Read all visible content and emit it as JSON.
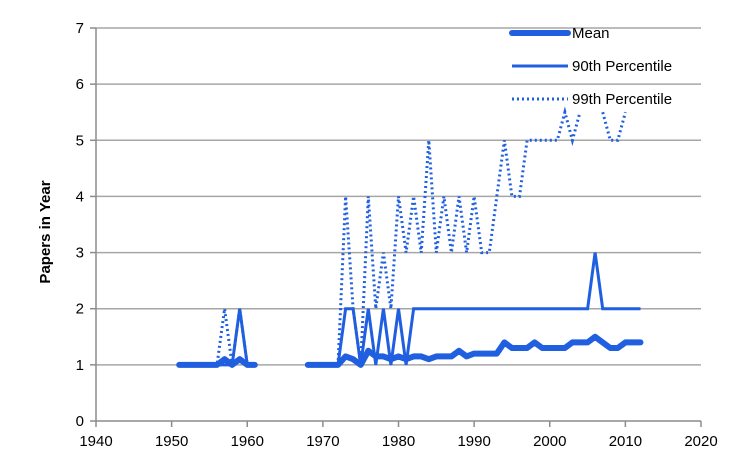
{
  "chart_data": {
    "type": "line",
    "title": "",
    "xlabel": "",
    "ylabel": "Papers in Year",
    "xlim": [
      1940,
      2020
    ],
    "ylim": [
      0,
      7
    ],
    "xticks": [
      1940,
      1950,
      1960,
      1970,
      1980,
      1990,
      2000,
      2010,
      2020
    ],
    "yticks": [
      0,
      1,
      2,
      3,
      4,
      5,
      6,
      7
    ],
    "grid": "horizontal",
    "legend": "top-right",
    "colors": {
      "series": "#1f5fe0",
      "grid": "#a6a6a6",
      "axis": "#8c8c8c"
    },
    "series": [
      {
        "name": "Mean",
        "style": "thick",
        "segments": [
          [
            [
              1951,
              1
            ],
            [
              1952,
              1
            ],
            [
              1953,
              1
            ],
            [
              1954,
              1
            ],
            [
              1955,
              1
            ],
            [
              1956,
              1
            ],
            [
              1957,
              1.1
            ],
            [
              1958,
              1
            ],
            [
              1959,
              1.1
            ],
            [
              1960,
              1
            ],
            [
              1961,
              1
            ]
          ],
          [
            [
              1968,
              1
            ],
            [
              1969,
              1
            ],
            [
              1970,
              1
            ],
            [
              1971,
              1
            ],
            [
              1972,
              1
            ],
            [
              1973,
              1.15
            ],
            [
              1974,
              1.1
            ],
            [
              1975,
              1
            ],
            [
              1976,
              1.25
            ],
            [
              1977,
              1.15
            ],
            [
              1978,
              1.15
            ],
            [
              1979,
              1.1
            ],
            [
              1980,
              1.15
            ],
            [
              1981,
              1.1
            ],
            [
              1982,
              1.15
            ],
            [
              1983,
              1.15
            ],
            [
              1984,
              1.1
            ],
            [
              1985,
              1.15
            ],
            [
              1986,
              1.15
            ],
            [
              1987,
              1.15
            ],
            [
              1988,
              1.25
            ],
            [
              1989,
              1.15
            ],
            [
              1990,
              1.2
            ],
            [
              1991,
              1.2
            ],
            [
              1992,
              1.2
            ],
            [
              1993,
              1.2
            ],
            [
              1994,
              1.4
            ],
            [
              1995,
              1.3
            ],
            [
              1996,
              1.3
            ],
            [
              1997,
              1.3
            ],
            [
              1998,
              1.4
            ],
            [
              1999,
              1.3
            ],
            [
              2000,
              1.3
            ],
            [
              2001,
              1.3
            ],
            [
              2002,
              1.3
            ],
            [
              2003,
              1.4
            ],
            [
              2004,
              1.4
            ],
            [
              2005,
              1.4
            ],
            [
              2006,
              1.5
            ],
            [
              2007,
              1.4
            ],
            [
              2008,
              1.3
            ],
            [
              2009,
              1.3
            ],
            [
              2010,
              1.4
            ],
            [
              2011,
              1.4
            ],
            [
              2012,
              1.4
            ]
          ]
        ]
      },
      {
        "name": "90th Percentile",
        "style": "solid",
        "segments": [
          [
            [
              1951,
              1
            ],
            [
              1952,
              1
            ],
            [
              1953,
              1
            ],
            [
              1954,
              1
            ],
            [
              1955,
              1
            ],
            [
              1956,
              1
            ],
            [
              1957,
              1
            ],
            [
              1958,
              1
            ],
            [
              1959,
              2
            ],
            [
              1960,
              1
            ],
            [
              1961,
              1
            ]
          ],
          [
            [
              1968,
              1
            ],
            [
              1969,
              1
            ],
            [
              1970,
              1
            ],
            [
              1971,
              1
            ],
            [
              1972,
              1
            ],
            [
              1973,
              2
            ],
            [
              1974,
              2
            ],
            [
              1975,
              1
            ],
            [
              1976,
              2
            ],
            [
              1977,
              1
            ],
            [
              1978,
              2
            ],
            [
              1979,
              1
            ],
            [
              1980,
              2
            ],
            [
              1981,
              1
            ],
            [
              1982,
              2
            ],
            [
              1983,
              2
            ],
            [
              1984,
              2
            ],
            [
              1985,
              2
            ],
            [
              1986,
              2
            ],
            [
              1987,
              2
            ],
            [
              1988,
              2
            ],
            [
              1989,
              2
            ],
            [
              1990,
              2
            ],
            [
              1991,
              2
            ],
            [
              1992,
              2
            ],
            [
              1993,
              2
            ],
            [
              1994,
              2
            ],
            [
              1995,
              2
            ],
            [
              1996,
              2
            ],
            [
              1997,
              2
            ],
            [
              1998,
              2
            ],
            [
              1999,
              2
            ],
            [
              2000,
              2
            ],
            [
              2001,
              2
            ],
            [
              2002,
              2
            ],
            [
              2003,
              2
            ],
            [
              2004,
              2
            ],
            [
              2005,
              2
            ],
            [
              2006,
              3
            ],
            [
              2007,
              2
            ],
            [
              2008,
              2
            ],
            [
              2009,
              2
            ],
            [
              2010,
              2
            ],
            [
              2011,
              2
            ],
            [
              2012,
              2
            ]
          ]
        ]
      },
      {
        "name": "99th Percentile",
        "style": "dotted",
        "segments": [
          [
            [
              1951,
              1
            ],
            [
              1952,
              1
            ],
            [
              1953,
              1
            ],
            [
              1954,
              1
            ],
            [
              1955,
              1
            ],
            [
              1956,
              1
            ],
            [
              1957,
              2
            ],
            [
              1958,
              1
            ],
            [
              1959,
              2
            ],
            [
              1960,
              1
            ],
            [
              1961,
              1
            ]
          ],
          [
            [
              1968,
              1
            ],
            [
              1969,
              1
            ],
            [
              1970,
              1
            ],
            [
              1971,
              1
            ],
            [
              1972,
              1
            ],
            [
              1973,
              4
            ],
            [
              1974,
              2
            ],
            [
              1975,
              1
            ],
            [
              1976,
              4
            ],
            [
              1977,
              2
            ],
            [
              1978,
              3
            ],
            [
              1979,
              2
            ],
            [
              1980,
              4
            ],
            [
              1981,
              3
            ],
            [
              1982,
              4
            ],
            [
              1983,
              3
            ],
            [
              1984,
              5
            ],
            [
              1985,
              3
            ],
            [
              1986,
              4
            ],
            [
              1987,
              3
            ],
            [
              1988,
              4
            ],
            [
              1989,
              3
            ],
            [
              1990,
              4
            ],
            [
              1991,
              3
            ],
            [
              1992,
              3
            ],
            [
              1993,
              4
            ],
            [
              1994,
              5
            ],
            [
              1995,
              4
            ],
            [
              1996,
              4
            ],
            [
              1997,
              5
            ],
            [
              1998,
              5
            ],
            [
              1999,
              5
            ],
            [
              2000,
              5
            ],
            [
              2001,
              5
            ],
            [
              2002,
              5.5
            ],
            [
              2003,
              5
            ],
            [
              2004,
              5.5
            ]
          ],
          [
            [
              2007,
              5.5
            ],
            [
              2008,
              5
            ],
            [
              2009,
              5
            ],
            [
              2010,
              5.5
            ]
          ]
        ]
      }
    ]
  }
}
